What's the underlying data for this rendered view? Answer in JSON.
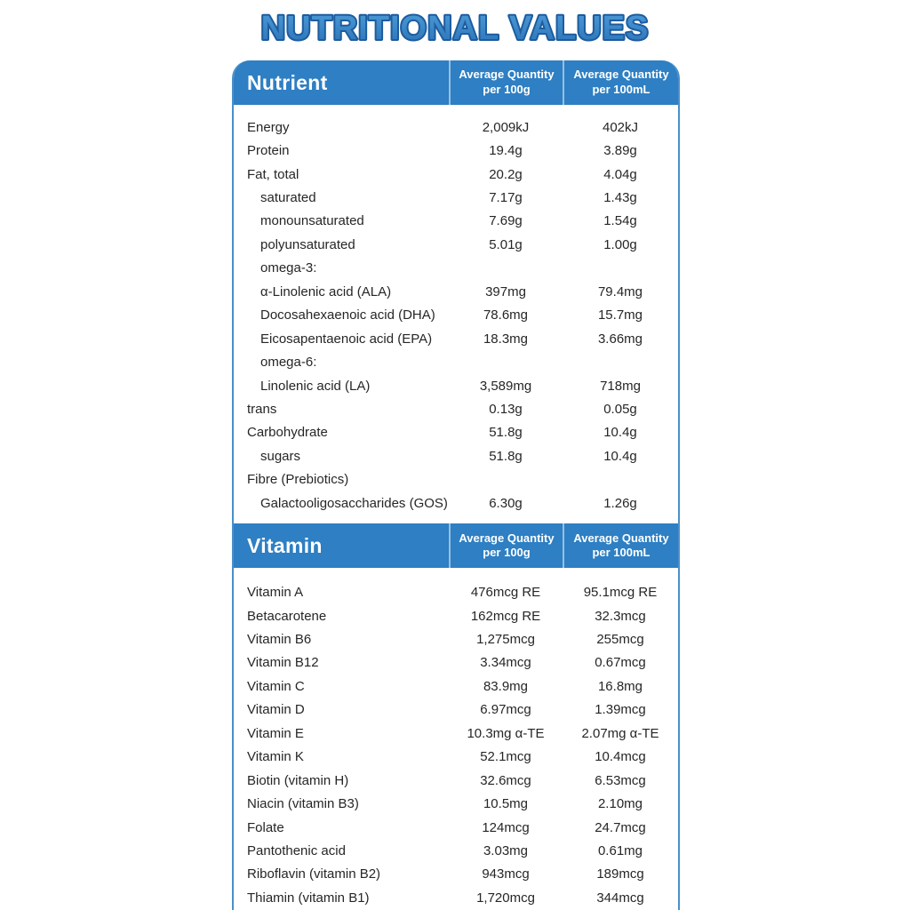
{
  "page": {
    "title": "NUTRITIONAL VALUES"
  },
  "colors": {
    "header_bg": "#2e7fc3",
    "card_border": "#4a8fc9",
    "body_text": "#262626",
    "title_fill_top": "#4d9bd9",
    "title_fill_bottom": "#2a72b6",
    "title_outline": "#1d5c9e"
  },
  "sections": [
    {
      "title": "Nutrient",
      "col_headers": [
        "Average Quantity\nper 100g",
        "Average Quantity\nper 100mL"
      ],
      "rows": [
        {
          "name": "Energy",
          "indent": 0,
          "per100g": "2,009kJ",
          "per100ml": "402kJ"
        },
        {
          "name": "Protein",
          "indent": 0,
          "per100g": "19.4g",
          "per100ml": "3.89g"
        },
        {
          "name": "Fat, total",
          "indent": 0,
          "per100g": "20.2g",
          "per100ml": "4.04g"
        },
        {
          "name": "saturated",
          "indent": 1,
          "per100g": "7.17g",
          "per100ml": "1.43g"
        },
        {
          "name": "monounsaturated",
          "indent": 1,
          "per100g": "7.69g",
          "per100ml": "1.54g"
        },
        {
          "name": "polyunsaturated",
          "indent": 1,
          "per100g": "5.01g",
          "per100ml": "1.00g"
        },
        {
          "name": "omega-3:",
          "indent": 1,
          "per100g": "",
          "per100ml": ""
        },
        {
          "name": "α-Linolenic acid (ALA)",
          "indent": 1,
          "per100g": "397mg",
          "per100ml": "79.4mg"
        },
        {
          "name": "Docosahexaenoic acid (DHA)",
          "indent": 1,
          "per100g": "78.6mg",
          "per100ml": "15.7mg"
        },
        {
          "name": "Eicosapentaenoic acid (EPA)",
          "indent": 1,
          "per100g": "18.3mg",
          "per100ml": "3.66mg"
        },
        {
          "name": "omega-6:",
          "indent": 1,
          "per100g": "",
          "per100ml": ""
        },
        {
          "name": "Linolenic acid (LA)",
          "indent": 1,
          "per100g": "3,589mg",
          "per100ml": "718mg"
        },
        {
          "name": "trans",
          "indent": 0,
          "per100g": "0.13g",
          "per100ml": "0.05g"
        },
        {
          "name": "Carbohydrate",
          "indent": 0,
          "per100g": "51.8g",
          "per100ml": "10.4g"
        },
        {
          "name": "sugars",
          "indent": 1,
          "per100g": "51.8g",
          "per100ml": "10.4g"
        },
        {
          "name": "Fibre (Prebiotics)",
          "indent": 0,
          "per100g": "",
          "per100ml": ""
        },
        {
          "name": "Galactooligosaccharides (GOS)",
          "indent": 1,
          "per100g": "6.30g",
          "per100ml": "1.26g"
        }
      ]
    },
    {
      "title": "Vitamin",
      "col_headers": [
        "Average Quantity\nper 100g",
        "Average Quantity\nper 100mL"
      ],
      "rows": [
        {
          "name": "Vitamin A",
          "indent": 0,
          "per100g": "476mcg RE",
          "per100ml": "95.1mcg RE"
        },
        {
          "name": "Betacarotene",
          "indent": 0,
          "per100g": "162mcg RE",
          "per100ml": "32.3mcg"
        },
        {
          "name": "Vitamin B6",
          "indent": 0,
          "per100g": "1,275mcg",
          "per100ml": "255mcg"
        },
        {
          "name": "Vitamin B12",
          "indent": 0,
          "per100g": "3.34mcg",
          "per100ml": "0.67mcg"
        },
        {
          "name": "Vitamin C",
          "indent": 0,
          "per100g": "83.9mg",
          "per100ml": "16.8mg"
        },
        {
          "name": "Vitamin D",
          "indent": 0,
          "per100g": "6.97mcg",
          "per100ml": "1.39mcg"
        },
        {
          "name": "Vitamin E",
          "indent": 0,
          "per100g": "10.3mg α-TE",
          "per100ml": "2.07mg α-TE"
        },
        {
          "name": "Vitamin K",
          "indent": 0,
          "per100g": "52.1mcg",
          "per100ml": "10.4mcg"
        },
        {
          "name": "Biotin (vitamin H)",
          "indent": 0,
          "per100g": "32.6mcg",
          "per100ml": "6.53mcg"
        },
        {
          "name": "Niacin (vitamin B3)",
          "indent": 0,
          "per100g": "10.5mg",
          "per100ml": "2.10mg"
        },
        {
          "name": "Folate",
          "indent": 0,
          "per100g": "124mcg",
          "per100ml": "24.7mcg"
        },
        {
          "name": "Pantothenic acid",
          "indent": 0,
          "per100g": "3.03mg",
          "per100ml": "0.61mg"
        },
        {
          "name": "Riboflavin (vitamin B2)",
          "indent": 0,
          "per100g": "943mcg",
          "per100ml": "189mcg"
        },
        {
          "name": "Thiamin (vitamin B1)",
          "indent": 0,
          "per100g": "1,720mcg",
          "per100ml": "344mcg"
        }
      ]
    }
  ]
}
